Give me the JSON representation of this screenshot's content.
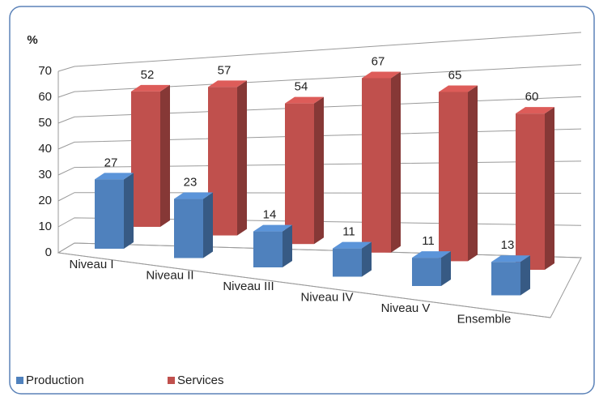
{
  "chart_data": {
    "type": "bar3d",
    "y_label": "%",
    "categories": [
      "Niveau I",
      "Niveau II",
      "Niveau III",
      "Niveau IV",
      "Niveau V",
      "Ensemble"
    ],
    "series": [
      {
        "name": "Production",
        "color": "#4f81bd",
        "values": [
          27,
          23,
          14,
          11,
          11,
          13
        ]
      },
      {
        "name": "Services",
        "color": "#c0504d",
        "values": [
          52,
          57,
          54,
          67,
          65,
          60
        ]
      }
    ],
    "ylim": [
      0,
      70
    ],
    "yticks": [
      0,
      10,
      20,
      30,
      40,
      50,
      60,
      70
    ],
    "grid": true,
    "legend": "bottom-left"
  }
}
